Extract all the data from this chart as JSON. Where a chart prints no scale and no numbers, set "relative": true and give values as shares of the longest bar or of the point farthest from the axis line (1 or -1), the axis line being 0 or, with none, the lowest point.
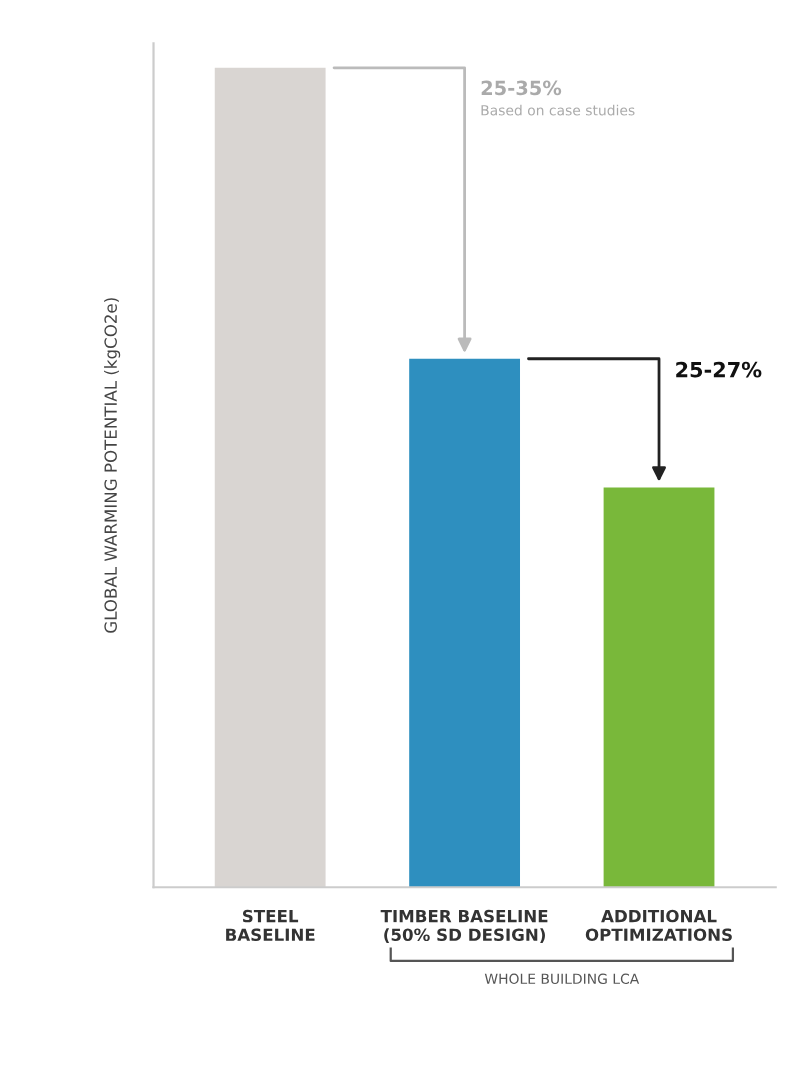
{
  "chart_data": {
    "type": "bar",
    "relative": true,
    "ylabel": "GLOBAL WARMING POTENTIAL (kgCO2e)",
    "categories": [
      "STEEL\nBASELINE",
      "TIMBER BASELINE\n(50% SD DESIGN)",
      "ADDITIONAL\nOPTIMIZATIONS"
    ],
    "values": [
      1,
      0.645,
      0.488
    ],
    "colors": [
      "#d9d5d2",
      "#2e8fbf",
      "#79b83a"
    ],
    "annotations": [
      "25-35%",
      "Based on case studies",
      "25-27%",
      "WHOLE BUILDING LCA"
    ],
    "grid": false,
    "legend": false
  }
}
